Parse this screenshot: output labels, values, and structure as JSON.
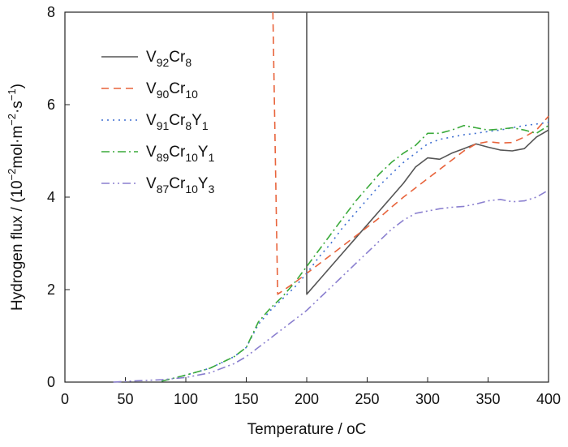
{
  "chart_data": {
    "type": "line",
    "xlabel": "Temperature / ",
    "xlabel_unit": "oC",
    "ylabel": "Hydrogen flux / (10",
    "ylabel_unit": "mol·m",
    "ylabel_unit2": "·s",
    "ylabel_end": ")",
    "ylabel_exp1": "−2",
    "ylabel_exp2": "−2",
    "ylabel_exp3": "−1",
    "xlim": [
      0,
      400
    ],
    "ylim": [
      0,
      8
    ],
    "xticks": [
      "0",
      "50",
      "100",
      "150",
      "200",
      "250",
      "300",
      "350",
      "400"
    ],
    "yticks": [
      "0",
      "2",
      "4",
      "6",
      "8"
    ],
    "grid": false,
    "legend_position": "top-left",
    "series": [
      {
        "name": "V92Cr8",
        "label_parts": [
          [
            "V",
            ""
          ],
          [
            "92",
            "sub"
          ],
          [
            "Cr",
            ""
          ],
          [
            "8",
            "sub"
          ]
        ],
        "color": "#555555",
        "dash": "",
        "x": [
          200,
          200,
          210,
          220,
          230,
          240,
          250,
          260,
          270,
          280,
          290,
          300,
          310,
          320,
          330,
          340,
          350,
          360,
          370,
          380,
          390,
          400
        ],
        "y": [
          8.0,
          1.9,
          2.2,
          2.5,
          2.8,
          3.1,
          3.4,
          3.7,
          4.0,
          4.3,
          4.65,
          4.85,
          4.82,
          4.95,
          5.05,
          5.15,
          5.08,
          5.02,
          5.0,
          5.05,
          5.3,
          5.45
        ]
      },
      {
        "name": "V90Cr10",
        "label_parts": [
          [
            "V",
            ""
          ],
          [
            "90",
            "sub"
          ],
          [
            "Cr",
            ""
          ],
          [
            "10",
            "sub"
          ]
        ],
        "color": "#e8643c",
        "dash": "9,6",
        "x": [
          172,
          174,
          176,
          190,
          200,
          210,
          220,
          230,
          240,
          250,
          260,
          270,
          280,
          290,
          300,
          310,
          320,
          330,
          340,
          350,
          360,
          370,
          380,
          390,
          400
        ],
        "y": [
          8.0,
          4.9,
          1.9,
          2.15,
          2.35,
          2.55,
          2.75,
          2.95,
          3.15,
          3.35,
          3.55,
          3.78,
          4.0,
          4.2,
          4.4,
          4.6,
          4.8,
          5.0,
          5.15,
          5.2,
          5.17,
          5.18,
          5.3,
          5.45,
          5.75
        ]
      },
      {
        "name": "V91Cr8Y1",
        "label_parts": [
          [
            "V",
            ""
          ],
          [
            "91",
            "sub"
          ],
          [
            "Cr",
            ""
          ],
          [
            "8",
            "sub"
          ],
          [
            "Y",
            ""
          ],
          [
            "1",
            "sub"
          ]
        ],
        "color": "#3f6fd1",
        "dash": "2,5",
        "x": [
          80,
          100,
          120,
          140,
          150,
          160,
          170,
          180,
          190,
          200,
          210,
          220,
          230,
          240,
          250,
          260,
          270,
          280,
          290,
          300,
          310,
          320,
          330,
          340,
          350,
          360,
          370,
          380,
          390,
          400
        ],
        "y": [
          0.02,
          0.15,
          0.3,
          0.55,
          0.75,
          1.25,
          1.55,
          1.8,
          2.05,
          2.35,
          2.7,
          3.0,
          3.35,
          3.65,
          3.95,
          4.25,
          4.5,
          4.75,
          4.95,
          5.15,
          5.25,
          5.3,
          5.35,
          5.38,
          5.42,
          5.45,
          5.5,
          5.55,
          5.58,
          5.62
        ]
      },
      {
        "name": "V89Cr10Y1",
        "label_parts": [
          [
            "V",
            ""
          ],
          [
            "89",
            "sub"
          ],
          [
            "Cr",
            ""
          ],
          [
            "10",
            "sub"
          ],
          [
            "Y",
            ""
          ],
          [
            "1",
            "sub"
          ]
        ],
        "color": "#3aaa3a",
        "dash": "10,4,2,4",
        "x": [
          80,
          100,
          120,
          140,
          150,
          160,
          170,
          180,
          190,
          200,
          210,
          220,
          230,
          240,
          250,
          260,
          270,
          280,
          290,
          300,
          310,
          320,
          330,
          340,
          350,
          360,
          370,
          380,
          390,
          400
        ],
        "y": [
          0.02,
          0.15,
          0.3,
          0.55,
          0.75,
          1.3,
          1.6,
          1.85,
          2.15,
          2.5,
          2.85,
          3.2,
          3.55,
          3.9,
          4.2,
          4.5,
          4.75,
          4.95,
          5.12,
          5.38,
          5.38,
          5.45,
          5.55,
          5.5,
          5.45,
          5.47,
          5.5,
          5.45,
          5.38,
          5.55
        ]
      },
      {
        "name": "V87Cr10Y3",
        "label_parts": [
          [
            "V",
            ""
          ],
          [
            "87",
            "sub"
          ],
          [
            "Cr",
            ""
          ],
          [
            "10",
            "sub"
          ],
          [
            "Y",
            ""
          ],
          [
            "3",
            "sub"
          ]
        ],
        "color": "#8a7fcf",
        "dash": "10,4,2,4,2,4",
        "x": [
          40,
          60,
          80,
          100,
          120,
          140,
          150,
          160,
          170,
          180,
          190,
          200,
          210,
          220,
          230,
          240,
          250,
          260,
          270,
          280,
          290,
          300,
          310,
          320,
          330,
          340,
          350,
          360,
          370,
          380,
          390,
          400
        ],
        "y": [
          0.0,
          0.03,
          0.05,
          0.1,
          0.2,
          0.4,
          0.55,
          0.75,
          0.95,
          1.15,
          1.35,
          1.55,
          1.8,
          2.05,
          2.3,
          2.55,
          2.8,
          3.05,
          3.3,
          3.5,
          3.65,
          3.7,
          3.75,
          3.78,
          3.8,
          3.85,
          3.92,
          3.95,
          3.9,
          3.92,
          4.0,
          4.15
        ]
      }
    ]
  }
}
